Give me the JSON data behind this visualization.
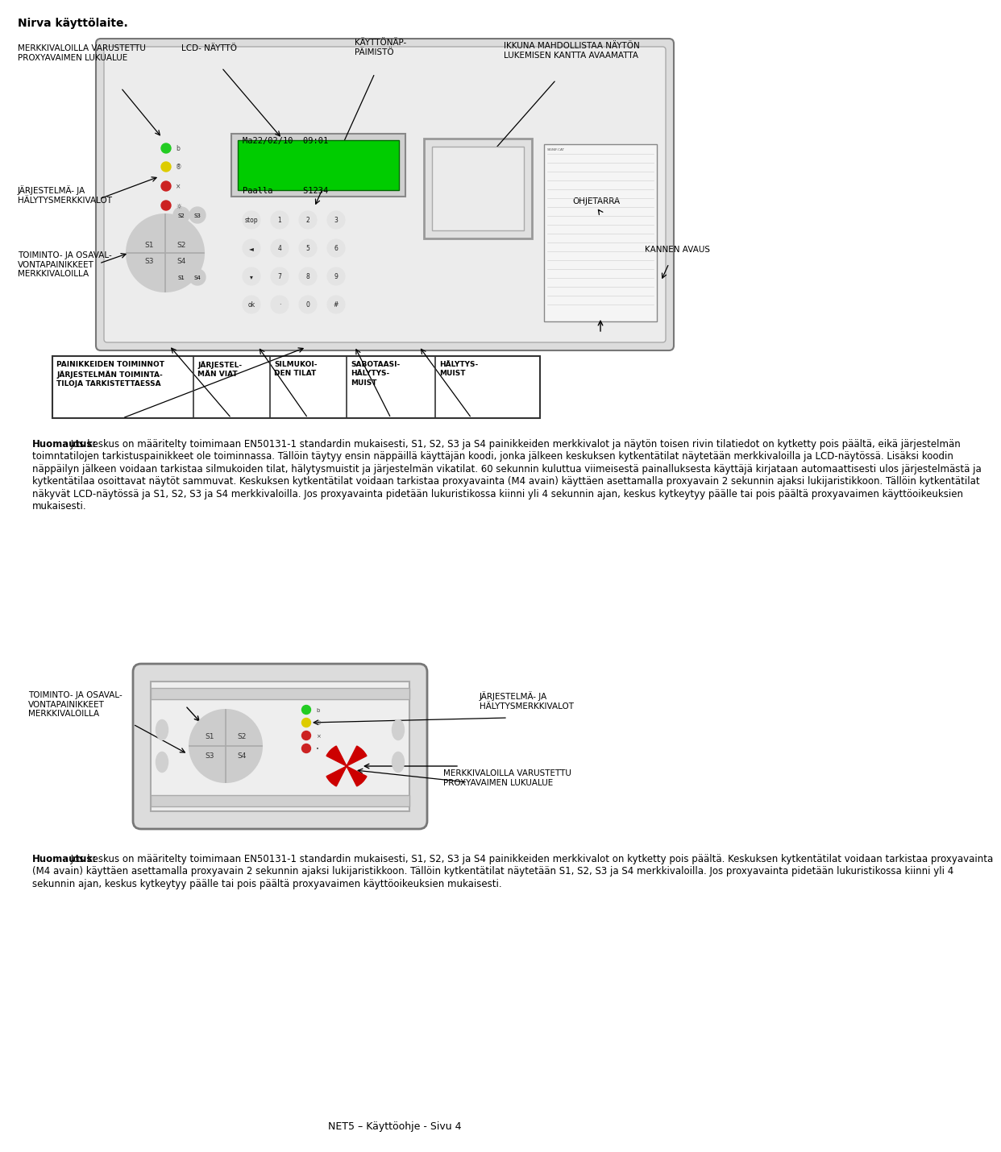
{
  "title": "Nirva käyttölaite.",
  "bg_color": "#ffffff",
  "fig_width": 9.6,
  "fig_height": 14.11,
  "label_merkkivaloilla_top": "MERKKIVALOILLA VARUSTETTU\nPROXYAVAIMEN LUKUALUE",
  "label_lcd": "LCD- NÄYTTÖ",
  "label_kayttonauto": "KÄYTTÖNÄP-\nPÄIMISTÖ",
  "label_ikkuna": "IKKUNA MAHDOLLISTAA NÄYTÖN\nLUKEMISEN KANTTA AVAAMATTA",
  "label_jarjestelma_top": "JÄRJESTELMÄ- JA\nHÄLYTYSMERKKIVALOT",
  "label_ohjetarra": "OHJETARRA",
  "label_toiminto_top": "TOIMINTO- JA OSAVAL-\nVONTAPAINIKKEET\nMERKKIVALOILLA",
  "label_kannen": "KANNEN AVAUS",
  "col_texts": [
    "PAINIKKEIDEN TOIMINNOT\nJÄRJESTELMÄN TOIMINTA-\nTILOJA TARKISTETTAESSA",
    "JÄRJESTEL-\nMÄN VIAT",
    "SILMUKOI-\nDEN TILAT",
    "SABOTAASI-\nHÄLYTYS-\nMUIST",
    "HÄLYTYS-\nMUIST"
  ],
  "paragraph1_bold": "Huomautus:",
  "paragraph1_rest": " Jos keskus on määritelty toimimaan EN50131-1 standardin mukaisesti, S1, S2, S3 ja S4 painikkeiden merkkivalot ja näytön toisen rivin tilatiedot on kytketty pois päältä, eikä järjestelmän toimntatilojen tarkistuspainikkeet ole toiminnassa. Tällöin täytyy ensin näppäillä käyttäjän koodi, jonka jälkeen keskuksen kytkentätilat näytetään merkkivaloilla ja LCD-näytössä. Lisäksi koodin näppäilyn jälkeen voidaan tarkistaa silmukoiden tilat, hälytysmuistit ja järjestelmän vikatilat. 60 sekunnin kuluttua viimeisestä painalluksesta käyttäjä kirjataan automaattisesti ulos järjestelmästä ja kytkentätilaa osoittavat näytöt sammuvat. Keskuksen kytkentätilat voidaan tarkistaa proxyavainta (M4 avain) käyttäen asettamalla proxyavain 2 sekunnin ajaksi lukijaristikkoon. Tällöin kytkentätilat näkyvät LCD-näytössä ja S1, S2, S3 ja S4 merkkivaloilla. Jos proxyavainta pidetään lukuristikossa kiinni yli 4 sekunnin ajan, keskus kytkeytyy päälle tai pois päältä proxyavaimen käyttöoikeuksien mukaisesti.",
  "label_toiminto_bot": "TOIMINTO- JA OSAVAL-\nVONTAPAINIKKEET\nMERKKIVALOILLA",
  "label_jarjestelma_bot": "JÄRJESTELMÄ- JA\nHÄLYTYSMERKKIVALOT",
  "label_merkkivaloilla_bot": "MERKKIVALOILLA VARUSTETTU\nPROXYAVAIMEN LUKUALUE",
  "paragraph2_bold": "Huomautus:",
  "paragraph2_rest": " Jos keskus on määritelty toimimaan EN50131-1 standardin mukaisesti, S1, S2, S3 ja S4 painikkeiden merkkivalot on kytketty pois päältä. Keskuksen kytkentätilat voidaan tarkistaa proxyavainta (M4 avain) käyttäen asettamalla proxyavain 2 sekunnin ajaksi lukijaristikkoon. Tällöin kytkentätilat näytetään S1, S2, S3 ja S4 merkkivaloilla. Jos proxyavainta pidetään lukuristikossa kiinni yli 4 sekunnin ajan, keskus kytkeytyy päälle tai pois päältä proxyavaimen käyttöoikeuksien mukaisesti.",
  "footer": "NET5 – Käyttöohje - Sivu 4",
  "lcd_text1": "Ma22/02/10  09:01",
  "lcd_text2": "Paalla      S1234",
  "lcd_bg": "#00cc00"
}
